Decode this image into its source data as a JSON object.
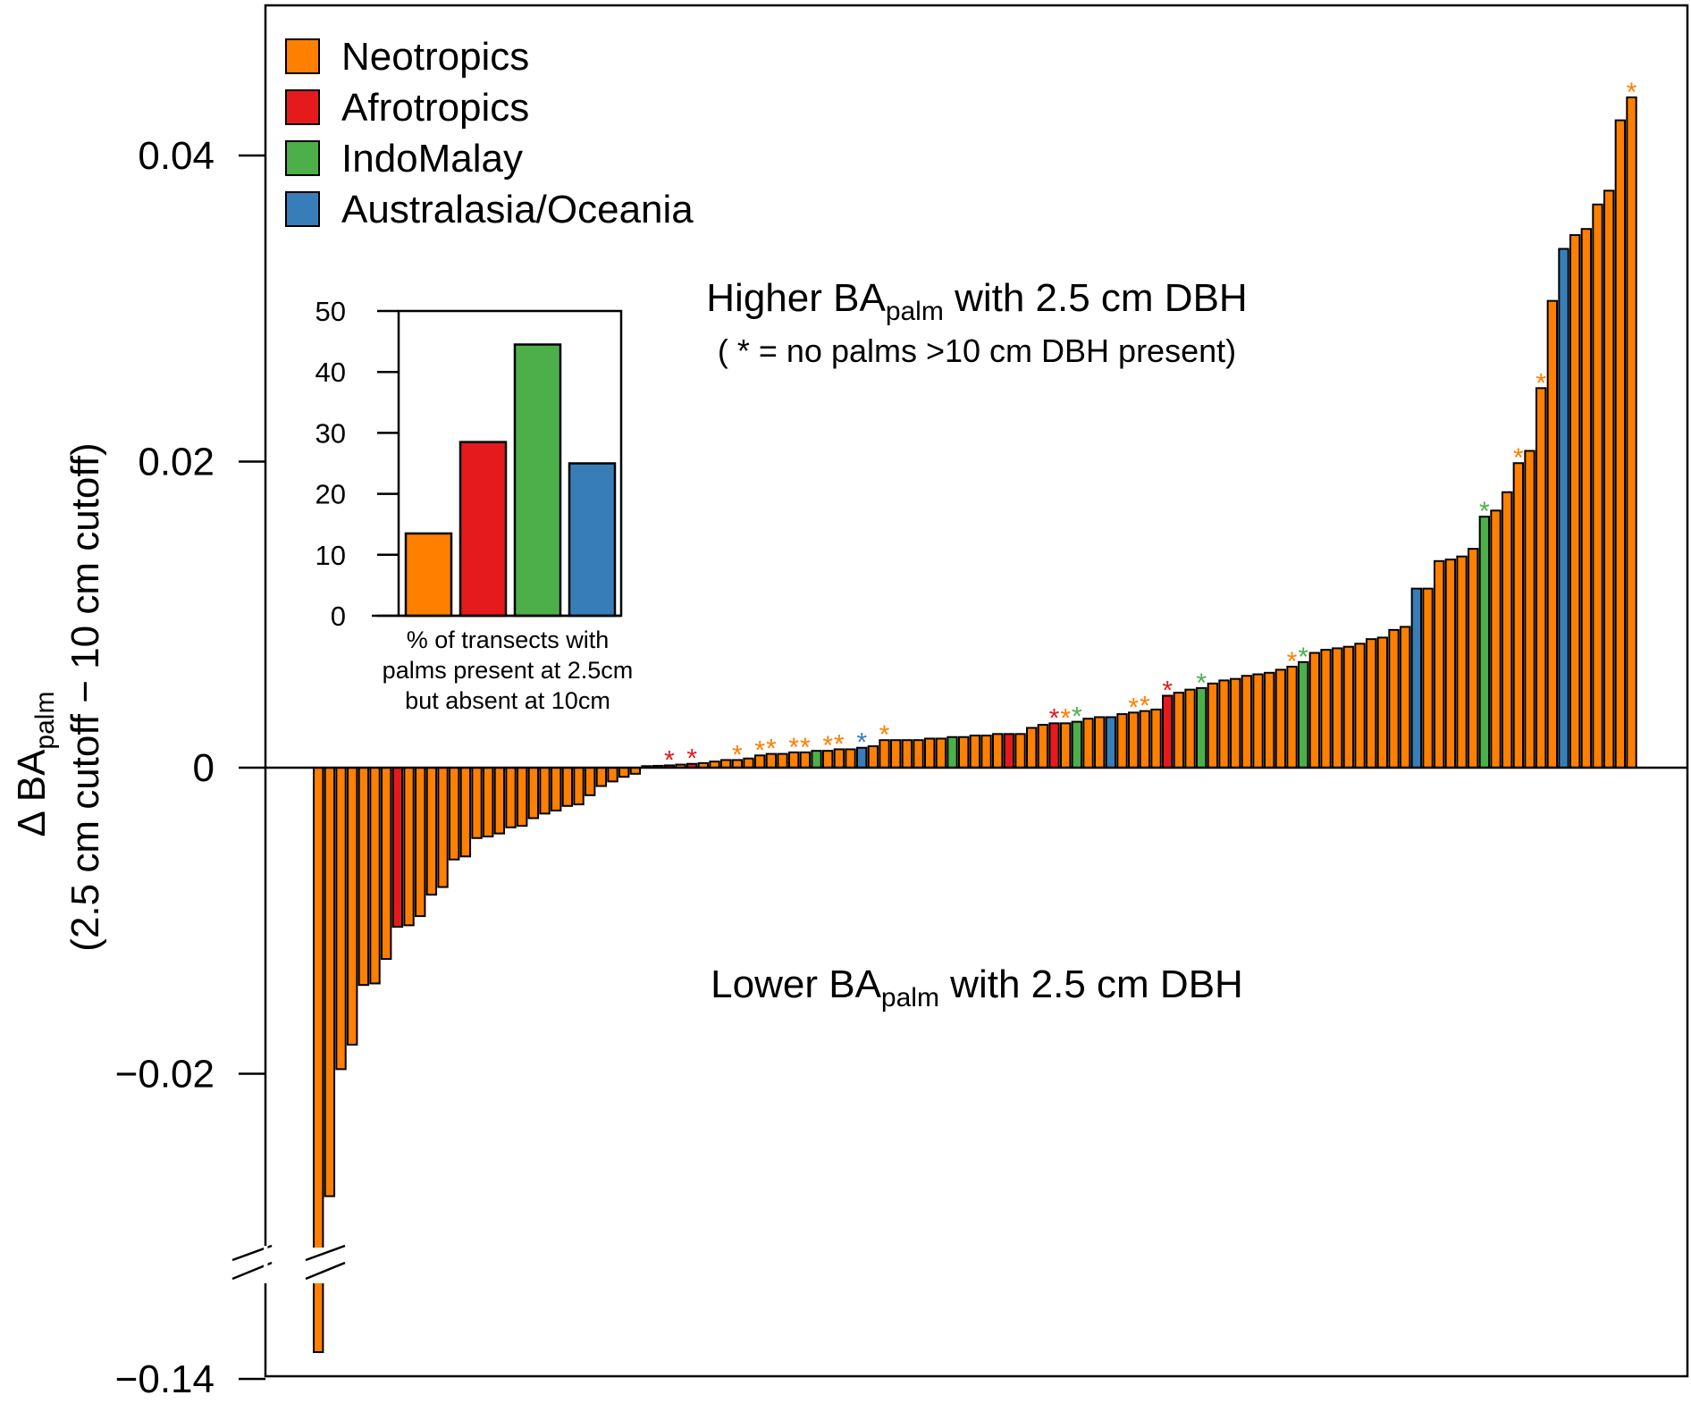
{
  "colors": {
    "Neotropics": "#ff7f00",
    "Afrotropics": "#e41a1c",
    "IndoMalay": "#4daf4a",
    "Australasia/Oceania": "#377eb8"
  },
  "chart_data": [
    {
      "type": "bar",
      "ylabel_main": "Δ BA",
      "ylabel_sub": "palm",
      "ylabel_line2": "(2.5 cm cutoff − 10 cm cutoff)",
      "ylim": [
        -0.03,
        0.05
      ],
      "yticks": [
        {
          "value": 0.04,
          "label": "0.04"
        },
        {
          "value": 0.02,
          "label": "0.02"
        },
        {
          "value": 0,
          "label": "0"
        },
        {
          "value": -0.02,
          "label": "−0.02"
        },
        {
          "value": -0.14,
          "label": "−0.14"
        }
      ],
      "axis_break": {
        "below": -0.031,
        "label_value": -0.14
      },
      "legend_position": "top-left",
      "legend": [
        "Neotropics",
        "Afrotropics",
        "IndoMalay",
        "Australasia/Oceania"
      ],
      "annotations": {
        "higher_main": "Higher BA",
        "higher_sub": "palm",
        "higher_rest": " with 2.5 cm DBH",
        "asterisk_note": "( * = no palms >10 cm DBH present)",
        "lower_main": "Lower BA",
        "lower_sub": "palm",
        "lower_rest": " with 2.5 cm DBH"
      },
      "asterisk_symbol": "*",
      "bars": [
        {
          "v": -0.14,
          "r": "Neotropics"
        },
        {
          "v": -0.028,
          "r": "Neotropics"
        },
        {
          "v": -0.0197,
          "r": "Neotropics"
        },
        {
          "v": -0.0181,
          "r": "Neotropics"
        },
        {
          "v": -0.0142,
          "r": "Neotropics"
        },
        {
          "v": -0.0141,
          "r": "Neotropics"
        },
        {
          "v": -0.0125,
          "r": "Neotropics"
        },
        {
          "v": -0.0104,
          "r": "Afrotropics"
        },
        {
          "v": -0.0103,
          "r": "Neotropics"
        },
        {
          "v": -0.0097,
          "r": "Neotropics"
        },
        {
          "v": -0.0083,
          "r": "Neotropics"
        },
        {
          "v": -0.0078,
          "r": "Neotropics"
        },
        {
          "v": -0.006,
          "r": "Neotropics"
        },
        {
          "v": -0.0058,
          "r": "Neotropics"
        },
        {
          "v": -0.0046,
          "r": "Neotropics"
        },
        {
          "v": -0.0045,
          "r": "Neotropics"
        },
        {
          "v": -0.0043,
          "r": "Neotropics"
        },
        {
          "v": -0.0039,
          "r": "Neotropics"
        },
        {
          "v": -0.0038,
          "r": "Neotropics"
        },
        {
          "v": -0.0033,
          "r": "Neotropics"
        },
        {
          "v": -0.003,
          "r": "Neotropics"
        },
        {
          "v": -0.0028,
          "r": "Neotropics"
        },
        {
          "v": -0.0025,
          "r": "Neotropics"
        },
        {
          "v": -0.0024,
          "r": "Neotropics"
        },
        {
          "v": -0.0018,
          "r": "Neotropics"
        },
        {
          "v": -0.0012,
          "r": "Neotropics"
        },
        {
          "v": -0.0009,
          "r": "Neotropics"
        },
        {
          "v": -0.0006,
          "r": "Neotropics"
        },
        {
          "v": -0.0004,
          "r": "Neotropics"
        },
        {
          "v": 0.0001,
          "r": "Neotropics"
        },
        {
          "v": 0.00012,
          "r": "Neotropics"
        },
        {
          "v": 0.00015,
          "r": "Afrotropics",
          "a": 1
        },
        {
          "v": 0.0002,
          "r": "Neotropics"
        },
        {
          "v": 0.00025,
          "r": "Afrotropics",
          "a": 1
        },
        {
          "v": 0.0003,
          "r": "Neotropics"
        },
        {
          "v": 0.0004,
          "r": "Neotropics"
        },
        {
          "v": 0.0005,
          "r": "Neotropics"
        },
        {
          "v": 0.0005,
          "r": "Neotropics",
          "a": 1
        },
        {
          "v": 0.0006,
          "r": "Neotropics"
        },
        {
          "v": 0.0008,
          "r": "Neotropics",
          "a": 1
        },
        {
          "v": 0.0009,
          "r": "Neotropics",
          "a": 1
        },
        {
          "v": 0.0009,
          "r": "Neotropics"
        },
        {
          "v": 0.001,
          "r": "Neotropics",
          "a": 1
        },
        {
          "v": 0.001,
          "r": "Neotropics",
          "a": 1
        },
        {
          "v": 0.0011,
          "r": "IndoMalay"
        },
        {
          "v": 0.0011,
          "r": "Neotropics",
          "a": 1
        },
        {
          "v": 0.0012,
          "r": "Neotropics",
          "a": 1
        },
        {
          "v": 0.0012,
          "r": "Neotropics"
        },
        {
          "v": 0.0013,
          "r": "Australasia/Oceania",
          "a": 1
        },
        {
          "v": 0.0014,
          "r": "Neotropics"
        },
        {
          "v": 0.0018,
          "r": "Neotropics",
          "a": 1
        },
        {
          "v": 0.0018,
          "r": "Neotropics"
        },
        {
          "v": 0.0018,
          "r": "Neotropics"
        },
        {
          "v": 0.0018,
          "r": "Neotropics"
        },
        {
          "v": 0.0019,
          "r": "Neotropics"
        },
        {
          "v": 0.0019,
          "r": "Neotropics"
        },
        {
          "v": 0.002,
          "r": "IndoMalay"
        },
        {
          "v": 0.002,
          "r": "Neotropics"
        },
        {
          "v": 0.0021,
          "r": "Neotropics"
        },
        {
          "v": 0.0021,
          "r": "Neotropics"
        },
        {
          "v": 0.0022,
          "r": "Neotropics"
        },
        {
          "v": 0.0022,
          "r": "Afrotropics"
        },
        {
          "v": 0.0022,
          "r": "Neotropics"
        },
        {
          "v": 0.0026,
          "r": "Neotropics"
        },
        {
          "v": 0.0028,
          "r": "Neotropics"
        },
        {
          "v": 0.0029,
          "r": "Afrotropics",
          "a": 1
        },
        {
          "v": 0.0029,
          "r": "Neotropics",
          "a": 1
        },
        {
          "v": 0.003,
          "r": "IndoMalay",
          "a": 1
        },
        {
          "v": 0.0032,
          "r": "Neotropics"
        },
        {
          "v": 0.0033,
          "r": "Neotropics"
        },
        {
          "v": 0.0033,
          "r": "Australasia/Oceania"
        },
        {
          "v": 0.0035,
          "r": "Neotropics"
        },
        {
          "v": 0.0036,
          "r": "Neotropics",
          "a": 1
        },
        {
          "v": 0.0037,
          "r": "Neotropics",
          "a": 1
        },
        {
          "v": 0.0038,
          "r": "Neotropics"
        },
        {
          "v": 0.0047,
          "r": "Afrotropics",
          "a": 1
        },
        {
          "v": 0.0049,
          "r": "Neotropics"
        },
        {
          "v": 0.0051,
          "r": "Neotropics"
        },
        {
          "v": 0.0052,
          "r": "IndoMalay",
          "a": 1
        },
        {
          "v": 0.0055,
          "r": "Neotropics"
        },
        {
          "v": 0.0057,
          "r": "Neotropics"
        },
        {
          "v": 0.0058,
          "r": "Neotropics"
        },
        {
          "v": 0.006,
          "r": "Neotropics"
        },
        {
          "v": 0.0061,
          "r": "Neotropics"
        },
        {
          "v": 0.0062,
          "r": "Neotropics"
        },
        {
          "v": 0.0064,
          "r": "Neotropics"
        },
        {
          "v": 0.0066,
          "r": "Neotropics",
          "a": 1
        },
        {
          "v": 0.0069,
          "r": "IndoMalay",
          "a": 1
        },
        {
          "v": 0.0075,
          "r": "Neotropics"
        },
        {
          "v": 0.0077,
          "r": "Neotropics"
        },
        {
          "v": 0.0078,
          "r": "Neotropics"
        },
        {
          "v": 0.0079,
          "r": "Neotropics"
        },
        {
          "v": 0.0081,
          "r": "Neotropics"
        },
        {
          "v": 0.0084,
          "r": "Neotropics"
        },
        {
          "v": 0.0085,
          "r": "Neotropics"
        },
        {
          "v": 0.009,
          "r": "Neotropics"
        },
        {
          "v": 0.0092,
          "r": "Neotropics"
        },
        {
          "v": 0.0117,
          "r": "Australasia/Oceania"
        },
        {
          "v": 0.0117,
          "r": "Neotropics"
        },
        {
          "v": 0.0135,
          "r": "Neotropics"
        },
        {
          "v": 0.0136,
          "r": "Neotropics"
        },
        {
          "v": 0.0138,
          "r": "Neotropics"
        },
        {
          "v": 0.0143,
          "r": "Neotropics"
        },
        {
          "v": 0.0164,
          "r": "IndoMalay",
          "a": 1
        },
        {
          "v": 0.0168,
          "r": "Neotropics"
        },
        {
          "v": 0.018,
          "r": "Neotropics"
        },
        {
          "v": 0.0199,
          "r": "Neotropics",
          "a": 1
        },
        {
          "v": 0.0207,
          "r": "Neotropics"
        },
        {
          "v": 0.0248,
          "r": "Neotropics",
          "a": 1
        },
        {
          "v": 0.0305,
          "r": "Neotropics"
        },
        {
          "v": 0.0339,
          "r": "Australasia/Oceania"
        },
        {
          "v": 0.0348,
          "r": "Neotropics"
        },
        {
          "v": 0.0352,
          "r": "Neotropics"
        },
        {
          "v": 0.0368,
          "r": "Neotropics"
        },
        {
          "v": 0.0377,
          "r": "Neotropics"
        },
        {
          "v": 0.0423,
          "r": "Neotropics"
        },
        {
          "v": 0.0438,
          "r": "Neotropics",
          "a": 1
        }
      ]
    },
    {
      "type": "bar",
      "categories": [
        "Neotropics",
        "Afrotropics",
        "IndoMalay",
        "Australasia/Oceania"
      ],
      "values": [
        13.5,
        28.5,
        44.5,
        25.0
      ],
      "ylim": [
        0,
        50
      ],
      "yticks": [
        0,
        10,
        20,
        30,
        40,
        50
      ],
      "xlabel_lines": [
        "% of transects with",
        "palms present at 2.5cm",
        "but absent at 10cm"
      ]
    }
  ]
}
